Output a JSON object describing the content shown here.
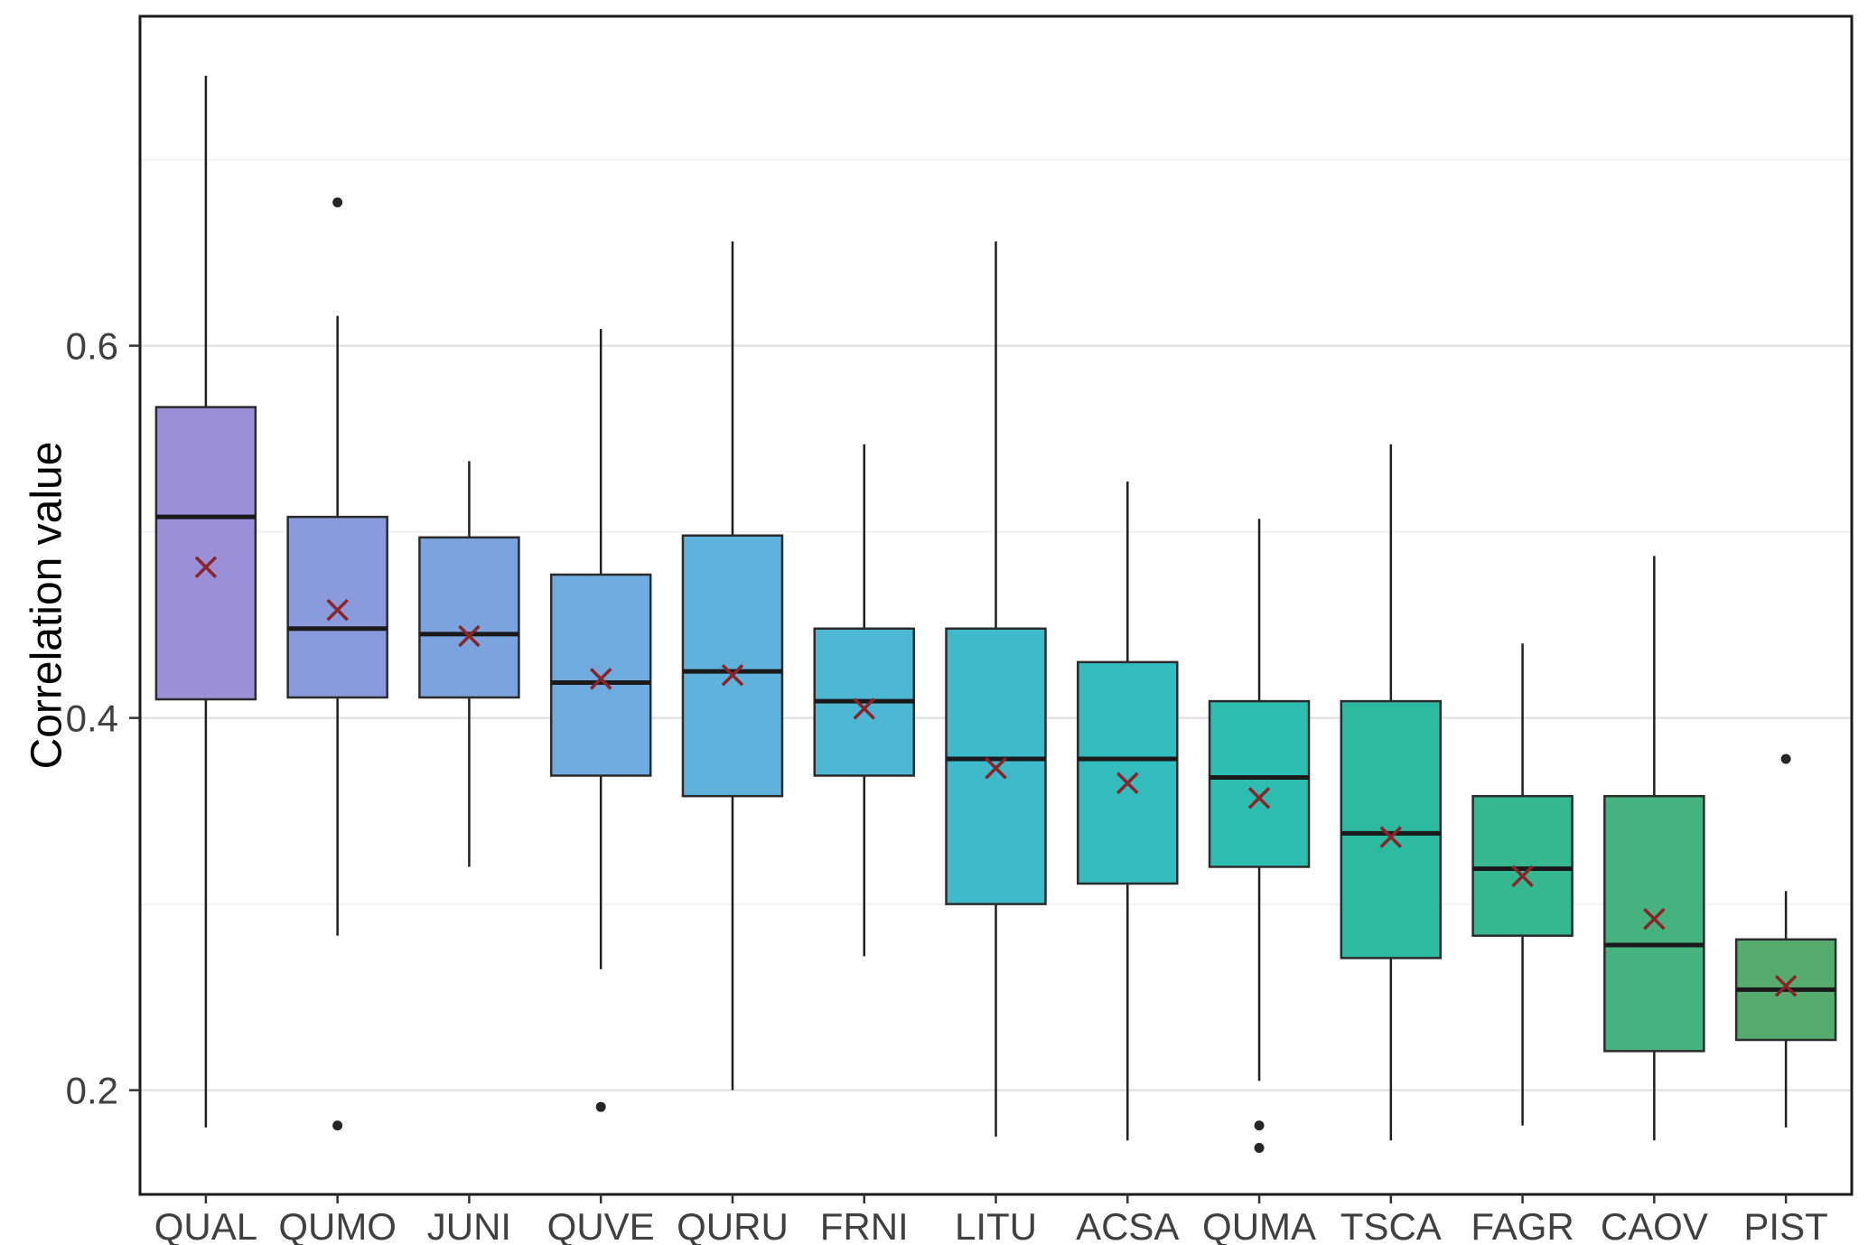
{
  "chart_data": {
    "type": "boxplot",
    "title": "",
    "xlabel": "",
    "ylabel": "Correlation value",
    "ylim": [
      0.144,
      0.777
    ],
    "yticks": [
      {
        "value": 0.2,
        "label": "0.2"
      },
      {
        "value": 0.4,
        "label": "0.4"
      },
      {
        "value": 0.6,
        "label": "0.6"
      }
    ],
    "minor_ticks": [
      0.3,
      0.5,
      0.7
    ],
    "grid": "horizontal",
    "legend": "none",
    "mean_marker": "x",
    "mean_color": "#8B2328",
    "outlier_color": "#262626",
    "box_stroke": "#2b2b2b",
    "axis_text_color": "#404040",
    "categories": [
      "QUAL",
      "QUMO",
      "JUNI",
      "QUVE",
      "QURU",
      "FRNI",
      "LITU",
      "ACSA",
      "QUMA",
      "TSCA",
      "FAGR",
      "CAOV",
      "PIST"
    ],
    "series": [
      {
        "name": "QUAL",
        "color": "#9B8FD8",
        "whisker_low": 0.18,
        "q1": 0.41,
        "median": 0.508,
        "q3": 0.567,
        "whisker_high": 0.745,
        "mean": 0.481,
        "outliers": []
      },
      {
        "name": "QUMO",
        "color": "#8A9BDC",
        "whisker_low": 0.283,
        "q1": 0.411,
        "median": 0.448,
        "q3": 0.508,
        "whisker_high": 0.616,
        "mean": 0.458,
        "outliers": [
          0.677,
          0.181
        ]
      },
      {
        "name": "JUNI",
        "color": "#7BA4DE",
        "whisker_low": 0.32,
        "q1": 0.411,
        "median": 0.445,
        "q3": 0.497,
        "whisker_high": 0.538,
        "mean": 0.444,
        "outliers": []
      },
      {
        "name": "QUVE",
        "color": "#6FABDE",
        "whisker_low": 0.265,
        "q1": 0.369,
        "median": 0.419,
        "q3": 0.477,
        "whisker_high": 0.609,
        "mean": 0.421,
        "outliers": [
          0.191
        ]
      },
      {
        "name": "QURU",
        "color": "#5FB2DC",
        "whisker_low": 0.2,
        "q1": 0.358,
        "median": 0.425,
        "q3": 0.498,
        "whisker_high": 0.656,
        "mean": 0.423,
        "outliers": []
      },
      {
        "name": "FRNI",
        "color": "#4EB7D4",
        "whisker_low": 0.272,
        "q1": 0.369,
        "median": 0.409,
        "q3": 0.448,
        "whisker_high": 0.547,
        "mean": 0.405,
        "outliers": []
      },
      {
        "name": "LITU",
        "color": "#3EBACA",
        "whisker_low": 0.175,
        "q1": 0.3,
        "median": 0.378,
        "q3": 0.448,
        "whisker_high": 0.656,
        "mean": 0.373,
        "outliers": []
      },
      {
        "name": "ACSA",
        "color": "#33BCBD",
        "whisker_low": 0.173,
        "q1": 0.311,
        "median": 0.378,
        "q3": 0.43,
        "whisker_high": 0.527,
        "mean": 0.365,
        "outliers": []
      },
      {
        "name": "QUMA",
        "color": "#2DBCB0",
        "whisker_low": 0.205,
        "q1": 0.32,
        "median": 0.368,
        "q3": 0.409,
        "whisker_high": 0.507,
        "mean": 0.357,
        "outliers": [
          0.181,
          0.169
        ]
      },
      {
        "name": "TSCA",
        "color": "#2CBAA1",
        "whisker_low": 0.173,
        "q1": 0.271,
        "median": 0.338,
        "q3": 0.409,
        "whisker_high": 0.547,
        "mean": 0.336,
        "outliers": []
      },
      {
        "name": "FAGR",
        "color": "#35B790",
        "whisker_low": 0.181,
        "q1": 0.283,
        "median": 0.319,
        "q3": 0.358,
        "whisker_high": 0.44,
        "mean": 0.315,
        "outliers": []
      },
      {
        "name": "CAOV",
        "color": "#45B280",
        "whisker_low": 0.173,
        "q1": 0.221,
        "median": 0.278,
        "q3": 0.358,
        "whisker_high": 0.487,
        "mean": 0.292,
        "outliers": []
      },
      {
        "name": "PIST",
        "color": "#56AC6F",
        "whisker_low": 0.18,
        "q1": 0.227,
        "median": 0.254,
        "q3": 0.281,
        "whisker_high": 0.307,
        "mean": 0.256,
        "outliers": [
          0.378
        ]
      }
    ]
  }
}
